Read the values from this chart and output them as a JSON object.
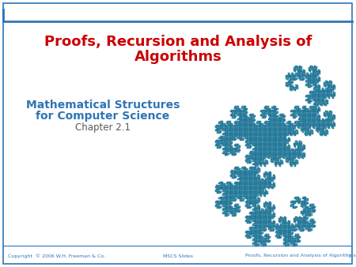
{
  "title_line1": "Proofs, Recursion and Analysis of",
  "title_line2": "Algorithms",
  "subtitle_line1": "Mathematical Structures",
  "subtitle_line2": "for Computer Science",
  "chapter": "Chapter 2.1",
  "footer_left": "Copyright  © 2006 W.H. Freeman & Co.",
  "footer_center": "MSCS Slides",
  "footer_right": "Proofs, Recursion and Analysis of Algorithms",
  "title_color": "#cc0000",
  "subtitle_color": "#2e75b6",
  "chapter_color": "#595959",
  "footer_color": "#2e75b6",
  "accent_fill": "#5ab4d1",
  "accent_edge": "#1f6b8a",
  "top_bar_color": "#2e75b6",
  "background_color": "#ffffff",
  "border_color": "#2e75b6"
}
